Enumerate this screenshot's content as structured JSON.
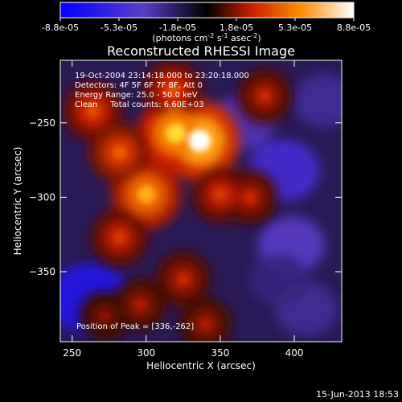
{
  "colorbar": {
    "tick_labels": [
      "-8.8e-05",
      "-5.3e-05",
      "-1.8e-05",
      "1.8e-05",
      "5.3e-05",
      "8.8e-05"
    ],
    "unit_prefix": "(photons cm",
    "unit_exp1": "-2",
    "unit_mid": " s",
    "unit_exp2": "-1",
    "unit_mid2": " asec",
    "unit_exp3": "-2",
    "unit_suffix": ")"
  },
  "chart_data": {
    "type": "heatmap",
    "title": "Reconstructed RHESSI Image",
    "xlabel": "Heliocentric X (arcsec)",
    "ylabel": "Heliocentric Y (arcsec)",
    "xlim": [
      242,
      432
    ],
    "ylim": [
      -397,
      -208
    ],
    "x_ticks": [
      250,
      300,
      350,
      400
    ],
    "y_ticks": [
      -250,
      -300,
      -350
    ],
    "x_tick_labels": [
      "250",
      "300",
      "350",
      "400"
    ],
    "y_tick_labels": [
      "−250",
      "−300",
      "−350"
    ],
    "color_range": [
      -8.8e-05,
      8.8e-05
    ],
    "colormap": "blue-purple-black-red-orange-yellow-white",
    "annotations": [
      "19-Oct-2004 23:14:18.000 to 23:20:18.000",
      "Detectors: 4F 5F 6F 7F 8F, Att 0",
      "Energy Range: 25.0 - 50.0 keV",
      "Clean     Total counts: 6.60E+03"
    ],
    "peak_label": "Position of Peak = [336,-262]",
    "peak": [
      336,
      -262
    ],
    "bright_sources": [
      {
        "x": 336,
        "y": -262,
        "value": 8.8e-05
      },
      {
        "x": 320,
        "y": -257,
        "value": 7.5e-05
      },
      {
        "x": 300,
        "y": -298,
        "value": 6.5e-05
      },
      {
        "x": 264,
        "y": -242,
        "value": 4e-05
      },
      {
        "x": 282,
        "y": -270,
        "value": 4.5e-05
      },
      {
        "x": 318,
        "y": -228,
        "value": 4e-05
      },
      {
        "x": 350,
        "y": -298,
        "value": 3.5e-05
      },
      {
        "x": 282,
        "y": -327,
        "value": 3.5e-05
      },
      {
        "x": 370,
        "y": -300,
        "value": 3e-05
      },
      {
        "x": 380,
        "y": -232,
        "value": 3e-05
      },
      {
        "x": 325,
        "y": -355,
        "value": 3e-05
      },
      {
        "x": 296,
        "y": -372,
        "value": 2.5e-05
      },
      {
        "x": 340,
        "y": -385,
        "value": 2.5e-05
      },
      {
        "x": 272,
        "y": -380,
        "value": 2e-05
      }
    ],
    "dim_regions": [
      {
        "x": 262,
        "y": -368,
        "value": -7e-05
      },
      {
        "x": 393,
        "y": -282,
        "value": -5e-05
      },
      {
        "x": 398,
        "y": -332,
        "value": -4e-05
      },
      {
        "x": 365,
        "y": -250,
        "value": -3.5e-05
      },
      {
        "x": 420,
        "y": -235,
        "value": -3e-05
      },
      {
        "x": 408,
        "y": -375,
        "value": -3e-05
      },
      {
        "x": 390,
        "y": -355,
        "value": -2.5e-05
      }
    ]
  },
  "footer": {
    "timestamp": "15-Jun-2013 18:53"
  }
}
